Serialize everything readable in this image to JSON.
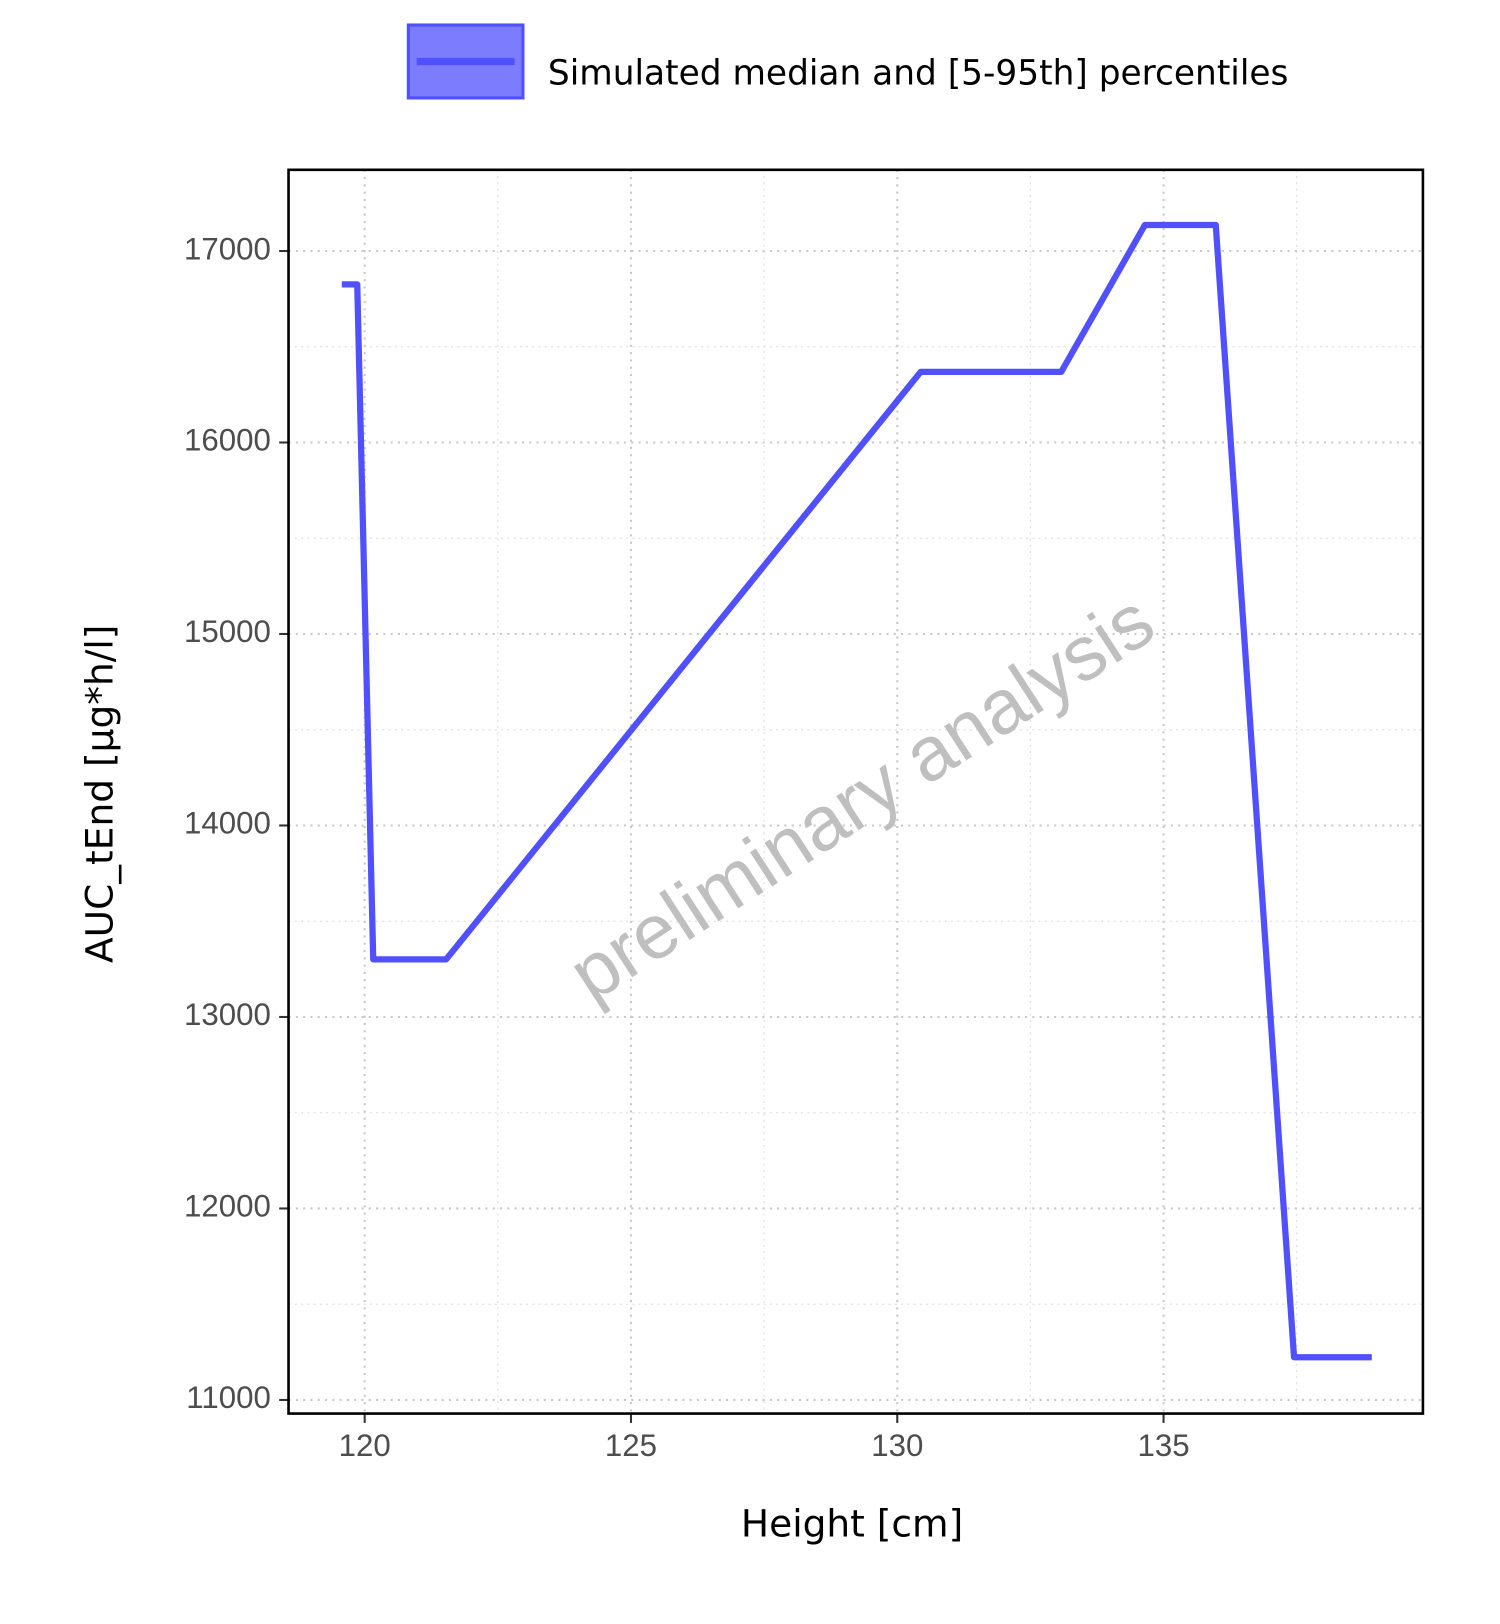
{
  "chart_data": {
    "type": "line",
    "xlabel": "Height [cm]",
    "ylabel": "AUC_tEnd [µg*h/l]",
    "annotation": "preliminary analysis",
    "series": [
      {
        "name": "Simulated median and [5-95th] percentiles",
        "color": "#5050ff",
        "x": [
          119.57,
          119.86,
          120.16,
          121.53,
          130.44,
          133.08,
          134.65,
          135.98,
          137.45,
          138.91
        ],
        "values": [
          16826,
          16826,
          13301,
          13301,
          16369,
          16369,
          17136,
          17136,
          11223,
          11223
        ]
      }
    ],
    "xlim": [
      118.57,
      139.87
    ],
    "xticks": [
      120,
      125,
      130,
      135
    ],
    "xticks_minor": [
      122.5,
      127.5,
      132.5,
      137.5
    ],
    "ylim": [
      10929,
      17424
    ],
    "yticks": [
      11000,
      12000,
      13000,
      14000,
      15000,
      16000,
      17000
    ],
    "yticks_minor": [
      11500,
      12500,
      13500,
      14500,
      15500,
      16500
    ],
    "grid": true,
    "legend": "top"
  }
}
